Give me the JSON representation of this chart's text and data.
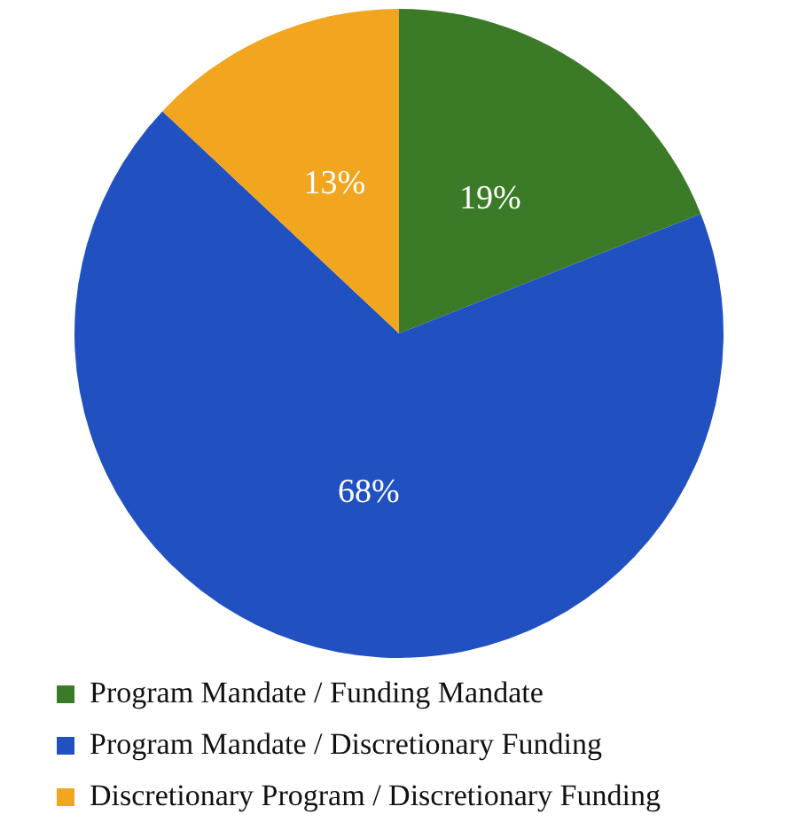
{
  "chart_data": {
    "type": "pie",
    "categories": [
      "Program Mandate / Funding Mandate",
      "Program Mandate / Discretionary Funding",
      "Discretionary Program / Discretionary Funding"
    ],
    "values": [
      19,
      68,
      13
    ],
    "colors": [
      "#3b7a27",
      "#2150c0",
      "#f2a51e"
    ],
    "value_labels": [
      "19%",
      "68%",
      "13%"
    ],
    "legend": "bottom"
  }
}
